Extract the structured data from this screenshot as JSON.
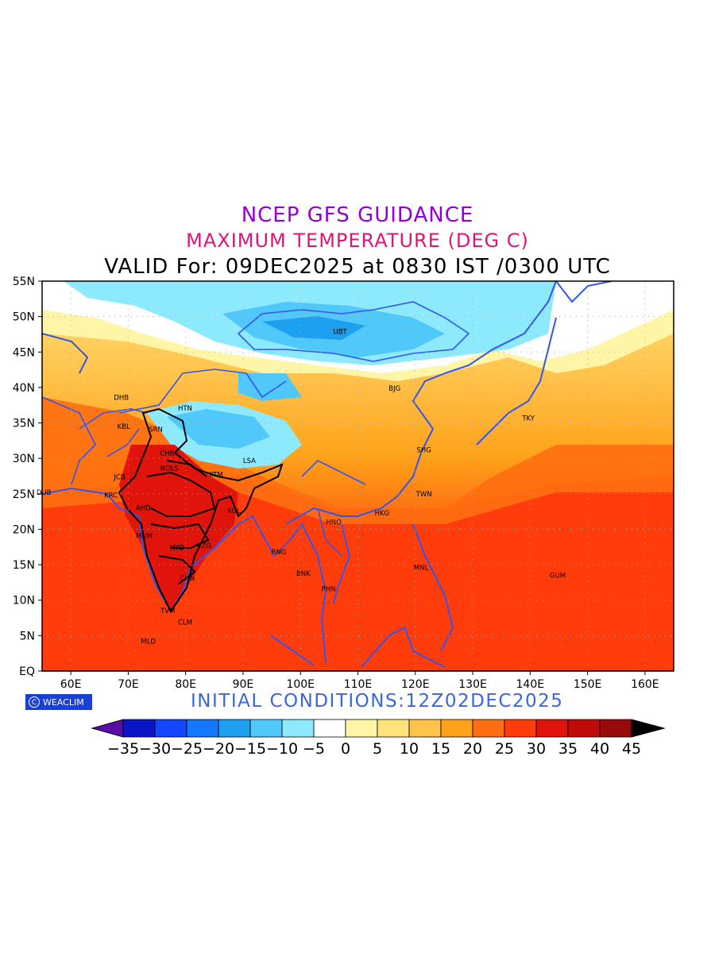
{
  "titles": {
    "line1": "NCEP GFS GUIDANCE",
    "line2": "MAXIMUM TEMPERATURE (DEG C)",
    "line3": "VALID For: 09DEC2025 at 0830 IST /0300 UTC"
  },
  "initial_conditions": "INITIAL CONDITIONS:12Z02DEC2025",
  "logo": {
    "text": "WEACLIM",
    "icon": "copyright-circle-icon"
  },
  "axes": {
    "lat_ticks": [
      "55N",
      "50N",
      "45N",
      "40N",
      "35N",
      "30N",
      "25N",
      "20N",
      "15N",
      "10N",
      "5N",
      "EQ"
    ],
    "lon_ticks": [
      "60E",
      "70E",
      "80E",
      "90E",
      "100E",
      "110E",
      "120E",
      "130E",
      "140E",
      "150E",
      "160E"
    ],
    "lon_range": [
      55,
      165
    ],
    "lat_range": [
      0,
      55
    ],
    "grid": true
  },
  "colorbar": {
    "labels": [
      "-35",
      "-30",
      "-25",
      "-20",
      "-15",
      "-10",
      "-5",
      "0",
      "5",
      "10",
      "15",
      "20",
      "25",
      "30",
      "35",
      "40",
      "45"
    ],
    "colors": [
      "#5a0ea8",
      "#0a14c8",
      "#1446ff",
      "#1478ff",
      "#1ea0f0",
      "#50c8fa",
      "#8ceafc",
      "#ffffff",
      "#fff5a6",
      "#ffe27a",
      "#ffc24a",
      "#ffa21a",
      "#ff6e10",
      "#ff3c0a",
      "#e0140a",
      "#c00a0a",
      "#9a0a0a",
      "#000000"
    ]
  },
  "cities": [
    {
      "name": "UBT",
      "lon": 106.9,
      "lat": 47.9
    },
    {
      "name": "BJG",
      "lon": 116.4,
      "lat": 39.9
    },
    {
      "name": "TKY",
      "lon": 139.7,
      "lat": 35.7
    },
    {
      "name": "SHG",
      "lon": 121.5,
      "lat": 31.2
    },
    {
      "name": "TWN",
      "lon": 121.5,
      "lat": 25.0
    },
    {
      "name": "HKG",
      "lon": 114.2,
      "lat": 22.3
    },
    {
      "name": "HNO",
      "lon": 105.8,
      "lat": 21.0
    },
    {
      "name": "MNL",
      "lon": 121.0,
      "lat": 14.6
    },
    {
      "name": "GUM",
      "lon": 144.8,
      "lat": 13.5
    },
    {
      "name": "PHN",
      "lon": 104.9,
      "lat": 11.6
    },
    {
      "name": "BNK",
      "lon": 100.5,
      "lat": 13.8
    },
    {
      "name": "RNG",
      "lon": 96.2,
      "lat": 16.8
    },
    {
      "name": "LSA",
      "lon": 91.1,
      "lat": 29.7
    },
    {
      "name": "KTM",
      "lon": 85.3,
      "lat": 27.7
    },
    {
      "name": "KOL",
      "lon": 88.4,
      "lat": 22.6
    },
    {
      "name": "HTN",
      "lon": 79.9,
      "lat": 37.1
    },
    {
      "name": "DHB",
      "lon": 68.8,
      "lat": 38.6
    },
    {
      "name": "KBL",
      "lon": 69.2,
      "lat": 34.5
    },
    {
      "name": "SRN",
      "lon": 74.8,
      "lat": 34.1
    },
    {
      "name": "CHR",
      "lon": 76.8,
      "lat": 30.7
    },
    {
      "name": "NDLS",
      "lon": 77.2,
      "lat": 28.6
    },
    {
      "name": "JCB",
      "lon": 68.5,
      "lat": 27.4
    },
    {
      "name": "DUB",
      "lon": 55.3,
      "lat": 25.2
    },
    {
      "name": "KRC",
      "lon": 67.0,
      "lat": 24.8
    },
    {
      "name": "AHD",
      "lon": 72.6,
      "lat": 23.0
    },
    {
      "name": "MUM",
      "lon": 72.8,
      "lat": 19.1
    },
    {
      "name": "HYD",
      "lon": 78.5,
      "lat": 17.4
    },
    {
      "name": "VZG",
      "lon": 83.2,
      "lat": 17.7
    },
    {
      "name": "CHN",
      "lon": 80.3,
      "lat": 13.1
    },
    {
      "name": "TVM",
      "lon": 76.9,
      "lat": 8.5
    },
    {
      "name": "CLM",
      "lon": 79.9,
      "lat": 6.9
    },
    {
      "name": "MLD",
      "lon": 73.5,
      "lat": 4.2
    }
  ]
}
